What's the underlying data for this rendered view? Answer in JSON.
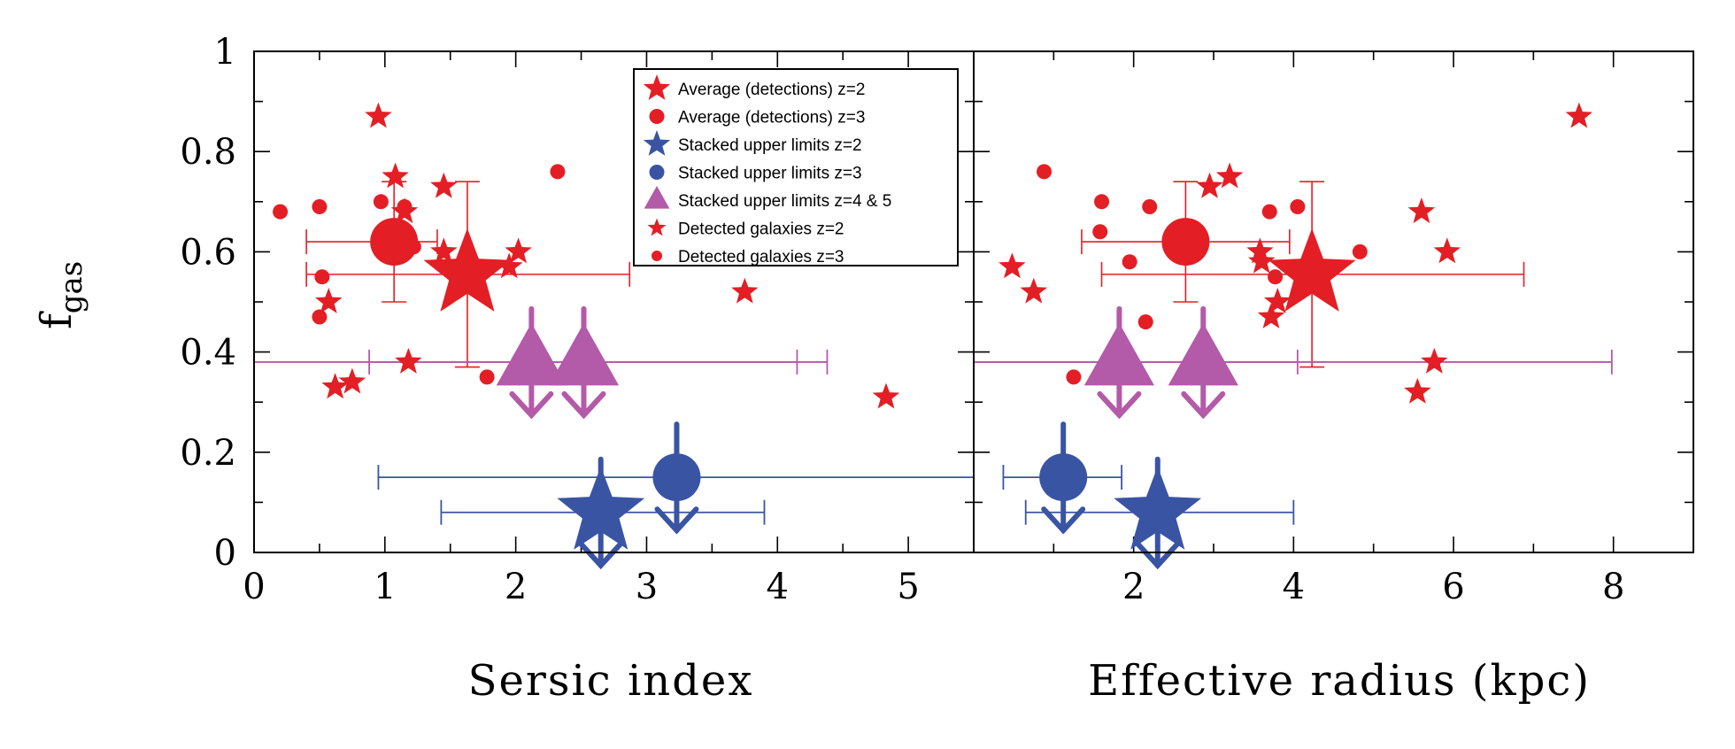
{
  "chart_data": [
    {
      "type": "scatter",
      "panel": "left",
      "xlabel": "Sersic index",
      "ylabel": "f_gas",
      "xlim": [
        0,
        5.5
      ],
      "ylim": [
        0,
        1
      ],
      "xticks": [
        0,
        1,
        2,
        3,
        4,
        5
      ],
      "yticks": [
        0,
        0.2,
        0.4,
        0.6,
        0.8,
        1
      ],
      "ytick_labels": [
        "0",
        "0.2",
        "0.4",
        "0.6",
        "0.8",
        "1"
      ],
      "series": [
        {
          "name": "Detected galaxies z=2",
          "marker": "star",
          "color": "#e31e24",
          "points": [
            [
              0.95,
              0.87
            ],
            [
              1.08,
              0.75
            ],
            [
              1.45,
              0.73
            ],
            [
              1.15,
              0.68
            ],
            [
              1.45,
              0.6
            ],
            [
              1.05,
              0.6
            ],
            [
              1.95,
              0.57
            ],
            [
              2.02,
              0.6
            ],
            [
              3.75,
              0.52
            ],
            [
              0.57,
              0.5
            ],
            [
              1.18,
              0.38
            ],
            [
              0.75,
              0.34
            ],
            [
              0.62,
              0.33
            ],
            [
              4.83,
              0.31
            ]
          ]
        },
        {
          "name": "Detected galaxies z=3",
          "marker": "circle",
          "color": "#e31e24",
          "points": [
            [
              0.2,
              0.68
            ],
            [
              0.5,
              0.69
            ],
            [
              0.97,
              0.7
            ],
            [
              1.15,
              0.69
            ],
            [
              1.22,
              0.61
            ],
            [
              0.52,
              0.55
            ],
            [
              0.5,
              0.47
            ],
            [
              2.32,
              0.76
            ],
            [
              1.78,
              0.35
            ]
          ]
        },
        {
          "name": "Average (detections) z=2",
          "marker": "bigstar",
          "color": "#e31e24",
          "points": [
            {
              "x": 1.63,
              "y": 0.555,
              "xerr": [
                0.4,
                2.87
              ],
              "yerr": [
                0.37,
                0.74
              ]
            }
          ]
        },
        {
          "name": "Average (detections) z=3",
          "marker": "bigcircle",
          "color": "#e31e24",
          "points": [
            {
              "x": 1.07,
              "y": 0.62,
              "xerr": [
                0.4,
                1.4
              ],
              "yerr": [
                0.5,
                0.74
              ]
            }
          ]
        },
        {
          "name": "Stacked upper limits z=2",
          "marker": "bigstar",
          "color": "#3a54a4",
          "upper_limit": true,
          "points": [
            {
              "x": 2.65,
              "y": 0.08,
              "xerr": [
                1.43,
                3.9
              ]
            }
          ]
        },
        {
          "name": "Stacked upper limits z=3",
          "marker": "bigcircle",
          "color": "#3a54a4",
          "upper_limit": true,
          "points": [
            {
              "x": 3.23,
              "y": 0.15,
              "xerr": [
                0.95,
                5.5
              ]
            }
          ]
        },
        {
          "name": "Stacked upper limits z=4 & 5",
          "marker": "bigtriangle",
          "color": "#b35aa8",
          "upper_limit": true,
          "points": [
            {
              "x": 2.12,
              "y": 0.38,
              "xerr": [
                0,
                4.38
              ]
            },
            {
              "x": 2.52,
              "y": 0.38,
              "xerr": [
                0.88,
                4.15
              ]
            }
          ]
        }
      ]
    },
    {
      "type": "scatter",
      "panel": "right",
      "xlabel": "Effective radius (kpc)",
      "xlim": [
        0,
        9
      ],
      "ylim": [
        0,
        1
      ],
      "xticks": [
        0,
        2,
        4,
        6,
        8
      ],
      "xtick_labels": [
        "",
        "2",
        "4",
        "6",
        "8"
      ],
      "series": [
        {
          "name": "Detected galaxies z=2",
          "marker": "star",
          "color": "#e31e24",
          "points": [
            [
              7.57,
              0.87
            ],
            [
              3.2,
              0.75
            ],
            [
              2.95,
              0.73
            ],
            [
              5.6,
              0.68
            ],
            [
              5.92,
              0.6
            ],
            [
              3.58,
              0.6
            ],
            [
              3.6,
              0.58
            ],
            [
              3.8,
              0.5
            ],
            [
              3.72,
              0.47
            ],
            [
              0.48,
              0.57
            ],
            [
              0.75,
              0.52
            ],
            [
              5.76,
              0.38
            ],
            [
              5.55,
              0.32
            ]
          ]
        },
        {
          "name": "Detected galaxies z=3",
          "marker": "circle",
          "color": "#e31e24",
          "points": [
            [
              0.88,
              0.76
            ],
            [
              1.6,
              0.7
            ],
            [
              2.2,
              0.69
            ],
            [
              3.7,
              0.68
            ],
            [
              4.05,
              0.69
            ],
            [
              1.58,
              0.64
            ],
            [
              4.83,
              0.6
            ],
            [
              1.95,
              0.58
            ],
            [
              3.77,
              0.55
            ],
            [
              2.15,
              0.46
            ],
            [
              1.25,
              0.35
            ]
          ]
        },
        {
          "name": "Average (detections) z=2",
          "marker": "bigstar",
          "color": "#e31e24",
          "points": [
            {
              "x": 4.23,
              "y": 0.555,
              "xerr": [
                1.6,
                6.88
              ],
              "yerr": [
                0.37,
                0.74
              ]
            }
          ]
        },
        {
          "name": "Average (detections) z=3",
          "marker": "bigcircle",
          "color": "#e31e24",
          "points": [
            {
              "x": 2.65,
              "y": 0.62,
              "xerr": [
                1.35,
                3.95
              ],
              "yerr": [
                0.5,
                0.74
              ]
            }
          ]
        },
        {
          "name": "Stacked upper limits z=2",
          "marker": "bigstar",
          "color": "#3a54a4",
          "upper_limit": true,
          "points": [
            {
              "x": 2.3,
              "y": 0.08,
              "xerr": [
                0.65,
                4.0
              ]
            }
          ]
        },
        {
          "name": "Stacked upper limits z=3",
          "marker": "bigcircle",
          "color": "#3a54a4",
          "upper_limit": true,
          "points": [
            {
              "x": 1.12,
              "y": 0.15,
              "xerr": [
                0.37,
                1.85
              ]
            }
          ]
        },
        {
          "name": "Stacked upper limits z=4 & 5",
          "marker": "bigtriangle",
          "color": "#b35aa8",
          "upper_limit": true,
          "points": [
            {
              "x": 1.82,
              "y": 0.38,
              "xerr": [
                0,
                7.98
              ]
            },
            {
              "x": 2.87,
              "y": 0.38,
              "xerr": [
                0,
                4.05
              ]
            }
          ]
        }
      ]
    }
  ],
  "legend": {
    "placement": "top-center",
    "entries": [
      {
        "label": "Average (detections) z=2",
        "marker": "star",
        "color": "#e31e24"
      },
      {
        "label": "Average (detections) z=3",
        "marker": "circle",
        "color": "#e31e24"
      },
      {
        "label": "Stacked upper limits z=2",
        "marker": "star",
        "color": "#3a54a4"
      },
      {
        "label": "Stacked upper limits z=3",
        "marker": "circle",
        "color": "#3a54a4"
      },
      {
        "label": "Stacked upper limits z=4 & 5",
        "marker": "triangle",
        "color": "#b35aa8"
      },
      {
        "label": "Detected galaxies z=2",
        "marker": "smallstar",
        "color": "#e31e24"
      },
      {
        "label": "Detected galaxies z=3",
        "marker": "smallcircle",
        "color": "#e31e24"
      }
    ]
  },
  "ylabel_main": "f",
  "ylabel_sub": "gas"
}
